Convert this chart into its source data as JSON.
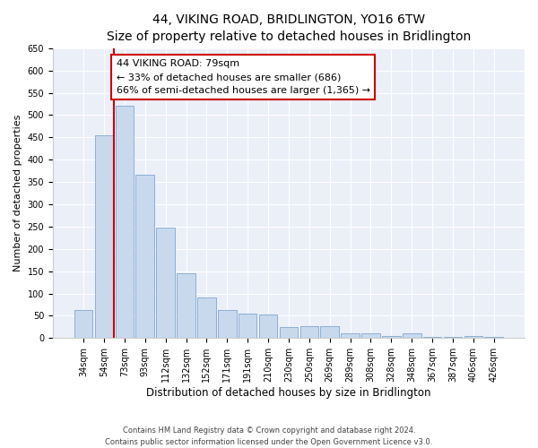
{
  "title": "44, VIKING ROAD, BRIDLINGTON, YO16 6TW",
  "subtitle": "Size of property relative to detached houses in Bridlington",
  "xlabel": "Distribution of detached houses by size in Bridlington",
  "ylabel": "Number of detached properties",
  "categories": [
    "34sqm",
    "54sqm",
    "73sqm",
    "93sqm",
    "112sqm",
    "132sqm",
    "152sqm",
    "171sqm",
    "191sqm",
    "210sqm",
    "230sqm",
    "250sqm",
    "269sqm",
    "289sqm",
    "308sqm",
    "328sqm",
    "348sqm",
    "367sqm",
    "387sqm",
    "406sqm",
    "426sqm"
  ],
  "values": [
    62,
    455,
    522,
    367,
    248,
    145,
    92,
    62,
    55,
    52,
    25,
    27,
    27,
    10,
    10,
    5,
    10,
    3,
    3,
    4,
    3
  ],
  "bar_color": "#c8d9ee",
  "bar_edge_color": "#8eafd4",
  "red_line_index": 2,
  "annotation_line1": "44 VIKING ROAD: 79sqm",
  "annotation_line2": "← 33% of detached houses are smaller (686)",
  "annotation_line3": "66% of semi-detached houses are larger (1,365) →",
  "annotation_box_color": "#ffffff",
  "annotation_box_edge": "#cc0000",
  "ylim": [
    0,
    650
  ],
  "yticks": [
    0,
    50,
    100,
    150,
    200,
    250,
    300,
    350,
    400,
    450,
    500,
    550,
    600,
    650
  ],
  "footer1": "Contains HM Land Registry data © Crown copyright and database right 2024.",
  "footer2": "Contains public sector information licensed under the Open Government Licence v3.0.",
  "title_fontsize": 10,
  "subtitle_fontsize": 9,
  "tick_fontsize": 7,
  "ylabel_fontsize": 8,
  "xlabel_fontsize": 8.5,
  "annot_fontsize": 8,
  "footer_fontsize": 6,
  "background_color": "#ffffff",
  "plot_bg_color": "#eaeff8"
}
